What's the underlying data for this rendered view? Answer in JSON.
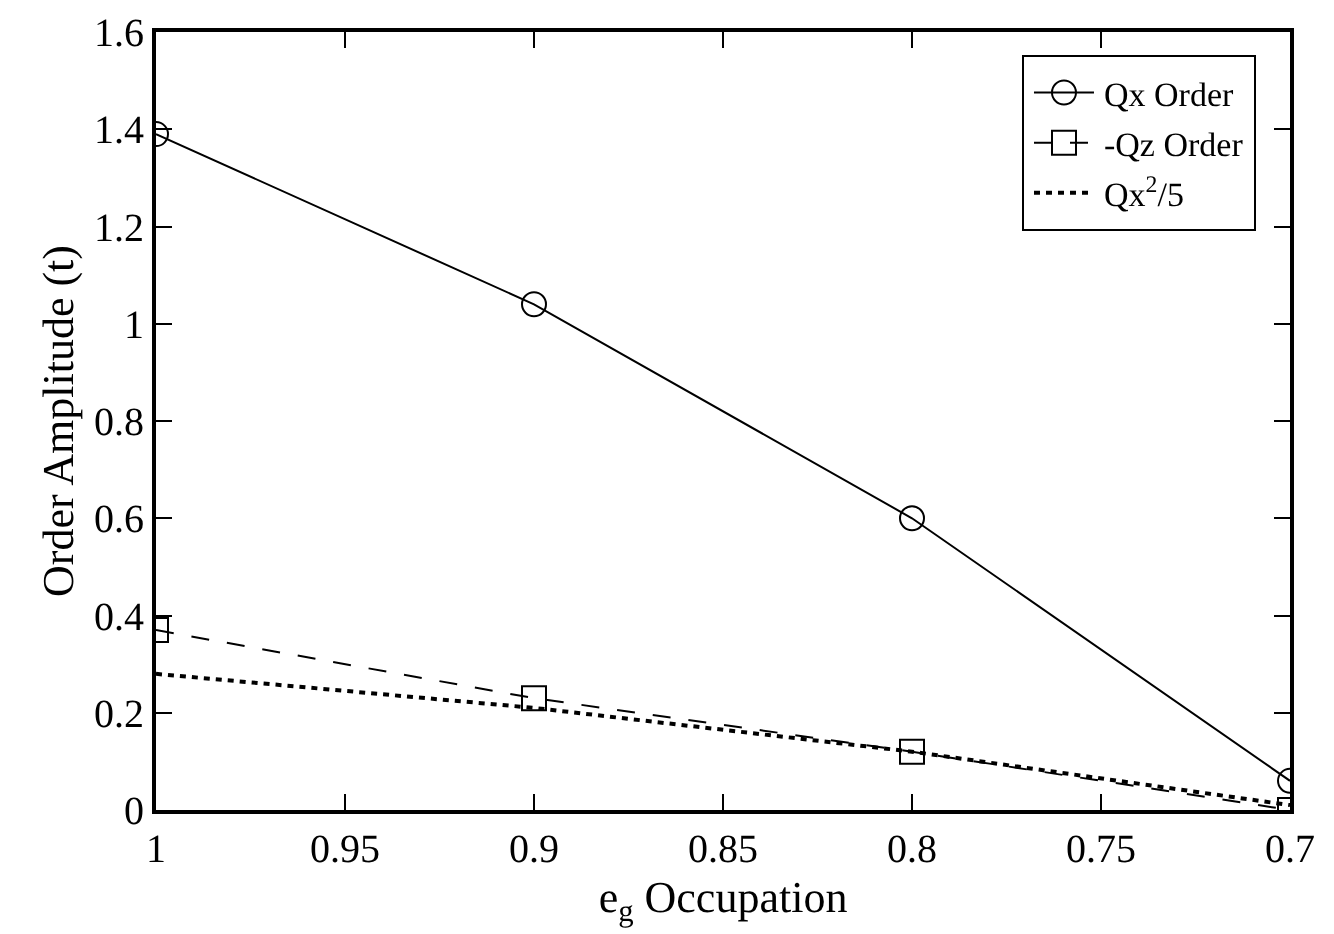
{
  "chart_data": {
    "type": "line",
    "xlabel": "e$_{g}$ Occupation",
    "ylabel": "Order Amplitude (t)",
    "x": [
      1,
      0.9,
      0.8,
      0.7
    ],
    "series": [
      {
        "name": "Qx Order",
        "color": "#000000",
        "values": [
          1.39,
          1.04,
          0.6,
          0.06
        ],
        "marker": "circle",
        "line_style": "solid"
      },
      {
        "name": "-Qz Order",
        "color": "#000000",
        "values": [
          0.37,
          0.23,
          0.12,
          0.0
        ],
        "marker": "square",
        "line_style": "dashed"
      },
      {
        "name": "Qx$^{2}$/5",
        "color": "#000000",
        "values": [
          0.28,
          0.21,
          0.12,
          0.01
        ],
        "marker": "none",
        "line_style": "dotted"
      }
    ],
    "xlim": [
      1,
      0.7
    ],
    "xticks": [
      1,
      0.95,
      0.9,
      0.85,
      0.8,
      0.75,
      0.7
    ],
    "ylim": [
      0,
      1.6
    ],
    "yticks": [
      0,
      0.2,
      0.4,
      0.6,
      0.8,
      1,
      1.2,
      1.4,
      1.6
    ],
    "grid": false,
    "legend": "top right"
  }
}
